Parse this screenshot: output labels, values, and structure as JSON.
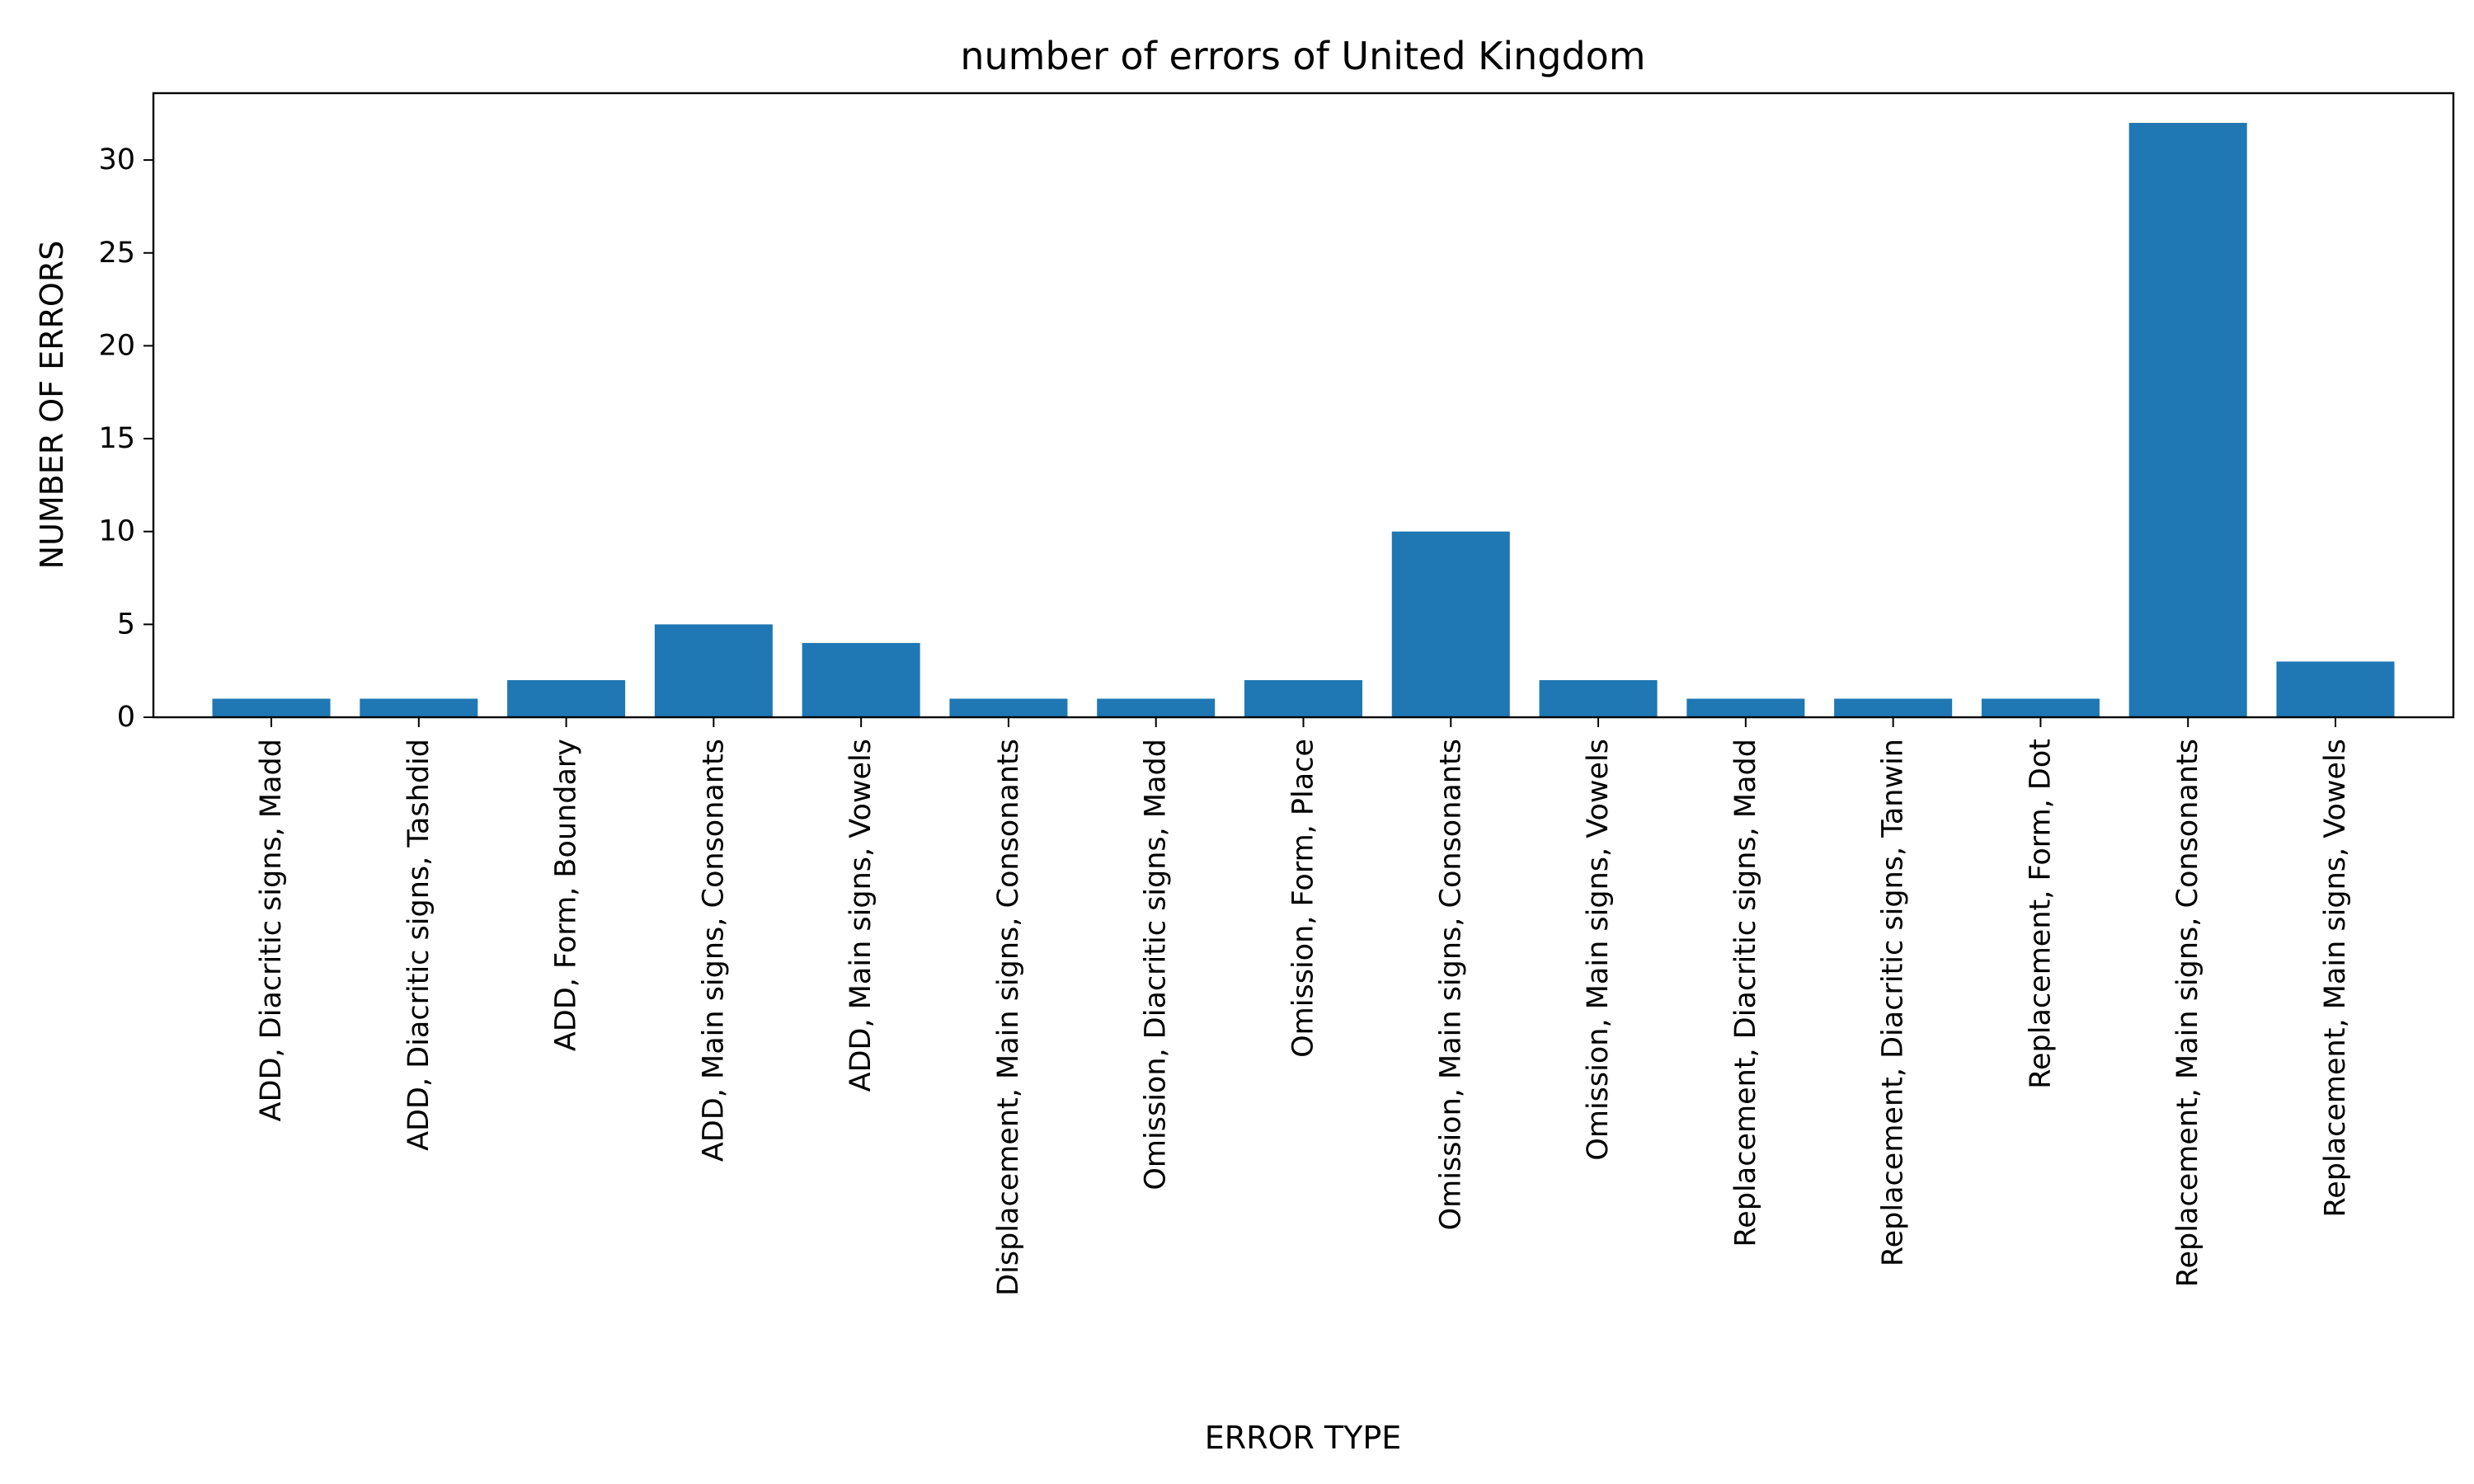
{
  "chart_data": {
    "type": "bar",
    "title": "number of errors of United Kingdom",
    "xlabel": "ERROR TYPE",
    "ylabel": "NUMBER OF ERRORS",
    "ylim": [
      0,
      33.6
    ],
    "yticks": [
      0,
      5,
      10,
      15,
      20,
      25,
      30
    ],
    "grid": false,
    "legend": "none",
    "bar_color": "#1f77b4",
    "categories": [
      "ADD, Diacritic signs, Madd",
      "ADD, Diacritic signs, Tashdid",
      "ADD, Form, Boundary",
      "ADD, Main signs, Consonants",
      "ADD, Main signs, Vowels",
      "Displacement, Main signs, Consonants",
      "Omission, Diacritic signs, Madd",
      "Omission, Form, Place",
      "Omission, Main signs, Consonants",
      "Omission, Main signs, Vowels",
      "Replacement, Diacritic signs, Madd",
      "Replacement, Diacritic signs, Tanwin",
      "Replacement, Form, Dot",
      "Replacement, Main signs, Consonants",
      "Replacement, Main signs, Vowels"
    ],
    "values": [
      1,
      1,
      2,
      5,
      4,
      1,
      1,
      2,
      10,
      2,
      1,
      1,
      1,
      32,
      3
    ]
  }
}
